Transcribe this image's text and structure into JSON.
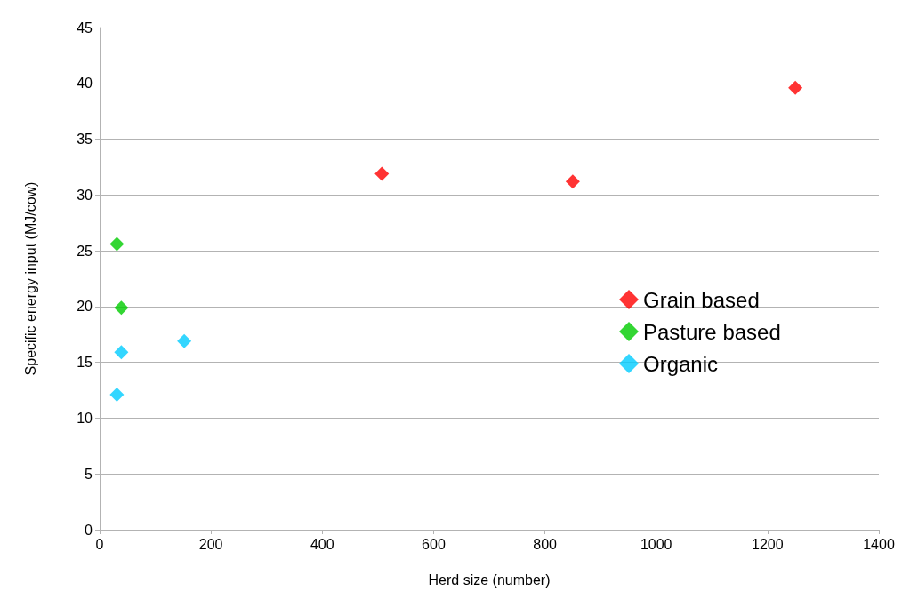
{
  "chart_data": {
    "type": "scatter",
    "xlabel": "Herd size (number)",
    "ylabel": "Specific energy input (MJ/cow)",
    "xlim": [
      0,
      1400
    ],
    "xticks": [
      0,
      200,
      400,
      600,
      800,
      1000,
      1200,
      1400
    ],
    "ylim": [
      0,
      45
    ],
    "yticks": [
      0,
      5,
      10,
      15,
      20,
      25,
      30,
      35,
      40,
      45
    ],
    "grid": "y",
    "legend": "right",
    "marker": "diamond",
    "series": [
      {
        "name": "Grain based",
        "color": "#ff0000",
        "x": [
          507,
          850,
          1250
        ],
        "values": [
          31.9,
          31.2,
          39.6
        ]
      },
      {
        "name": "Pasture based",
        "color": "#00cc00",
        "x": [
          31,
          39
        ],
        "values": [
          25.6,
          19.9
        ]
      },
      {
        "name": "Organic",
        "color": "#00ccff",
        "x": [
          31,
          39,
          152
        ],
        "values": [
          12.1,
          15.9,
          16.9
        ]
      }
    ]
  }
}
